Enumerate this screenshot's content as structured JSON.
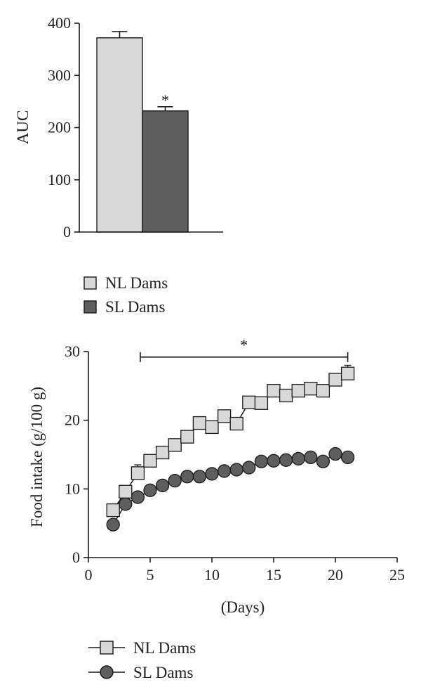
{
  "colors": {
    "nl": "#d8d8d8",
    "sl": "#5e5e5e",
    "outline": "#1a1a1a"
  },
  "chart_data": [
    {
      "type": "bar",
      "ylabel": "AUC",
      "ylim": [
        0,
        400
      ],
      "yticks": [
        "0",
        "100",
        "200",
        "300",
        "400"
      ],
      "categories": [
        "NL Dams",
        "SL Dams"
      ],
      "values": [
        372,
        232
      ],
      "errors": [
        12,
        8
      ],
      "annotations": [
        {
          "category": "SL Dams",
          "text": "*"
        }
      ],
      "legend": [
        {
          "label": "NL Dams",
          "swatch": "square-light"
        },
        {
          "label": "SL Dams",
          "swatch": "square-dark"
        }
      ]
    },
    {
      "type": "line",
      "xlabel": "(Days)",
      "ylabel": "Food intake (g/100 g)",
      "xlim": [
        0,
        25
      ],
      "ylim": [
        0,
        30
      ],
      "xticks": [
        "0",
        "5",
        "10",
        "15",
        "20",
        "25"
      ],
      "yticks": [
        "0",
        "10",
        "20",
        "30"
      ],
      "significance": {
        "text": "*",
        "x_start": 4.2,
        "x_end": 21,
        "y": 29.2
      },
      "series": [
        {
          "name": "NL Dams",
          "marker": "square",
          "x": [
            2,
            3,
            4,
            5,
            6,
            7,
            8,
            9,
            10,
            11,
            12,
            13,
            14,
            15,
            16,
            17,
            18,
            19,
            20,
            21
          ],
          "y": [
            6.9,
            9.6,
            12.3,
            14.1,
            15.3,
            16.4,
            17.6,
            19.6,
            19.0,
            20.6,
            19.5,
            22.6,
            22.5,
            24.3,
            23.6,
            24.3,
            24.6,
            24.3,
            25.9,
            26.8
          ],
          "err": [
            0.3,
            0.4,
            1.2,
            0.3,
            0.3,
            0.3,
            0.3,
            0.9,
            0.8,
            0.4,
            0.3,
            0.5,
            0.8,
            0.4,
            0.4,
            0.4,
            0.8,
            0.4,
            0.8,
            1.2
          ]
        },
        {
          "name": "SL Dams",
          "marker": "circle",
          "x": [
            2,
            3,
            4,
            5,
            6,
            7,
            8,
            9,
            10,
            11,
            12,
            13,
            14,
            15,
            16,
            17,
            18,
            19,
            20,
            21
          ],
          "y": [
            4.8,
            7.8,
            8.8,
            9.8,
            10.5,
            11.2,
            11.8,
            11.8,
            12.2,
            12.6,
            12.8,
            13.1,
            14.0,
            14.1,
            14.2,
            14.4,
            14.6,
            14.0,
            15.1,
            14.6
          ],
          "err": [
            0.2,
            0.2,
            0.2,
            0.2,
            0.2,
            0.2,
            0.2,
            0.2,
            0.2,
            0.2,
            0.2,
            0.2,
            0.2,
            0.2,
            0.2,
            0.2,
            0.2,
            0.2,
            0.2,
            0.2
          ]
        }
      ],
      "legend": [
        {
          "label": "NL Dams",
          "marker": "square"
        },
        {
          "label": "SL Dams",
          "marker": "circle"
        }
      ]
    }
  ]
}
